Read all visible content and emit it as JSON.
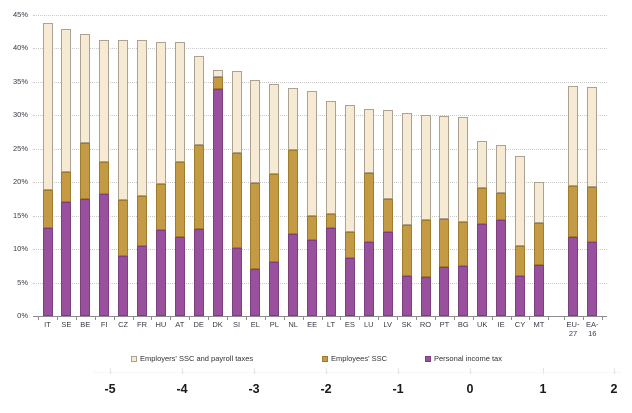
{
  "chart_data": {
    "type": "bar",
    "stacked": true,
    "title": "",
    "xlabel": "",
    "ylabel": "",
    "ylim": [
      0,
      45
    ],
    "ytick_step": 5,
    "ytick_suffix": "%",
    "grid": true,
    "legend_position": "bottom",
    "categories": [
      "IT",
      "SE",
      "BE",
      "FI",
      "CZ",
      "FR",
      "HU",
      "AT",
      "DE",
      "DK",
      "SI",
      "EL",
      "PL",
      "NL",
      "EE",
      "LT",
      "ES",
      "LU",
      "LV",
      "SK",
      "RO",
      "PT",
      "BG",
      "UK",
      "IE",
      "CY",
      "MT",
      "EU-27",
      "EA-16"
    ],
    "series": [
      {
        "name": "Personal income tax",
        "color": "#99519e",
        "border": "#7a4080",
        "values": [
          13.2,
          17.0,
          17.5,
          18.2,
          9.0,
          10.4,
          12.8,
          11.8,
          13.0,
          34.0,
          10.1,
          7.1,
          8.1,
          12.2,
          11.4,
          13.1,
          8.6,
          11.0,
          12.5,
          6.0,
          5.8,
          7.3,
          7.5,
          13.8,
          14.3,
          6.0,
          7.6,
          11.8,
          11.0
        ]
      },
      {
        "name": "Employees' SSC",
        "color": "#c59a45",
        "border": "#9e7c2e",
        "values": [
          5.6,
          4.6,
          8.3,
          4.8,
          8.4,
          7.6,
          7.0,
          11.2,
          12.6,
          1.7,
          14.2,
          12.8,
          13.2,
          12.6,
          3.6,
          2.1,
          4.0,
          10.4,
          5.0,
          7.6,
          8.5,
          7.2,
          6.6,
          5.3,
          4.1,
          4.5,
          6.3,
          7.7,
          8.3
        ]
      },
      {
        "name": "Employers' SSC and payroll taxes",
        "color": "#f6ead3",
        "border": "#aba294",
        "values": [
          25.0,
          21.3,
          16.4,
          18.3,
          23.9,
          23.2,
          21.2,
          17.9,
          13.2,
          1.1,
          12.3,
          15.4,
          13.4,
          9.3,
          18.6,
          17.0,
          18.9,
          9.5,
          13.3,
          16.8,
          15.7,
          15.4,
          15.6,
          7.0,
          7.2,
          13.4,
          6.1,
          14.9,
          14.9
        ]
      }
    ]
  },
  "legend": {
    "items": [
      {
        "label": "Employers' SSC and payroll taxes",
        "color": "#f6ead3",
        "border": "#aba294"
      },
      {
        "label": "Employees' SSC",
        "color": "#c59a45",
        "border": "#9e7c2e"
      },
      {
        "label": "Personal income tax",
        "color": "#99519e",
        "border": "#7a4080"
      }
    ]
  },
  "bottom_axis": {
    "labels": [
      "-5",
      "-4",
      "-3",
      "-2",
      "-1",
      "0",
      "1",
      "2"
    ]
  }
}
